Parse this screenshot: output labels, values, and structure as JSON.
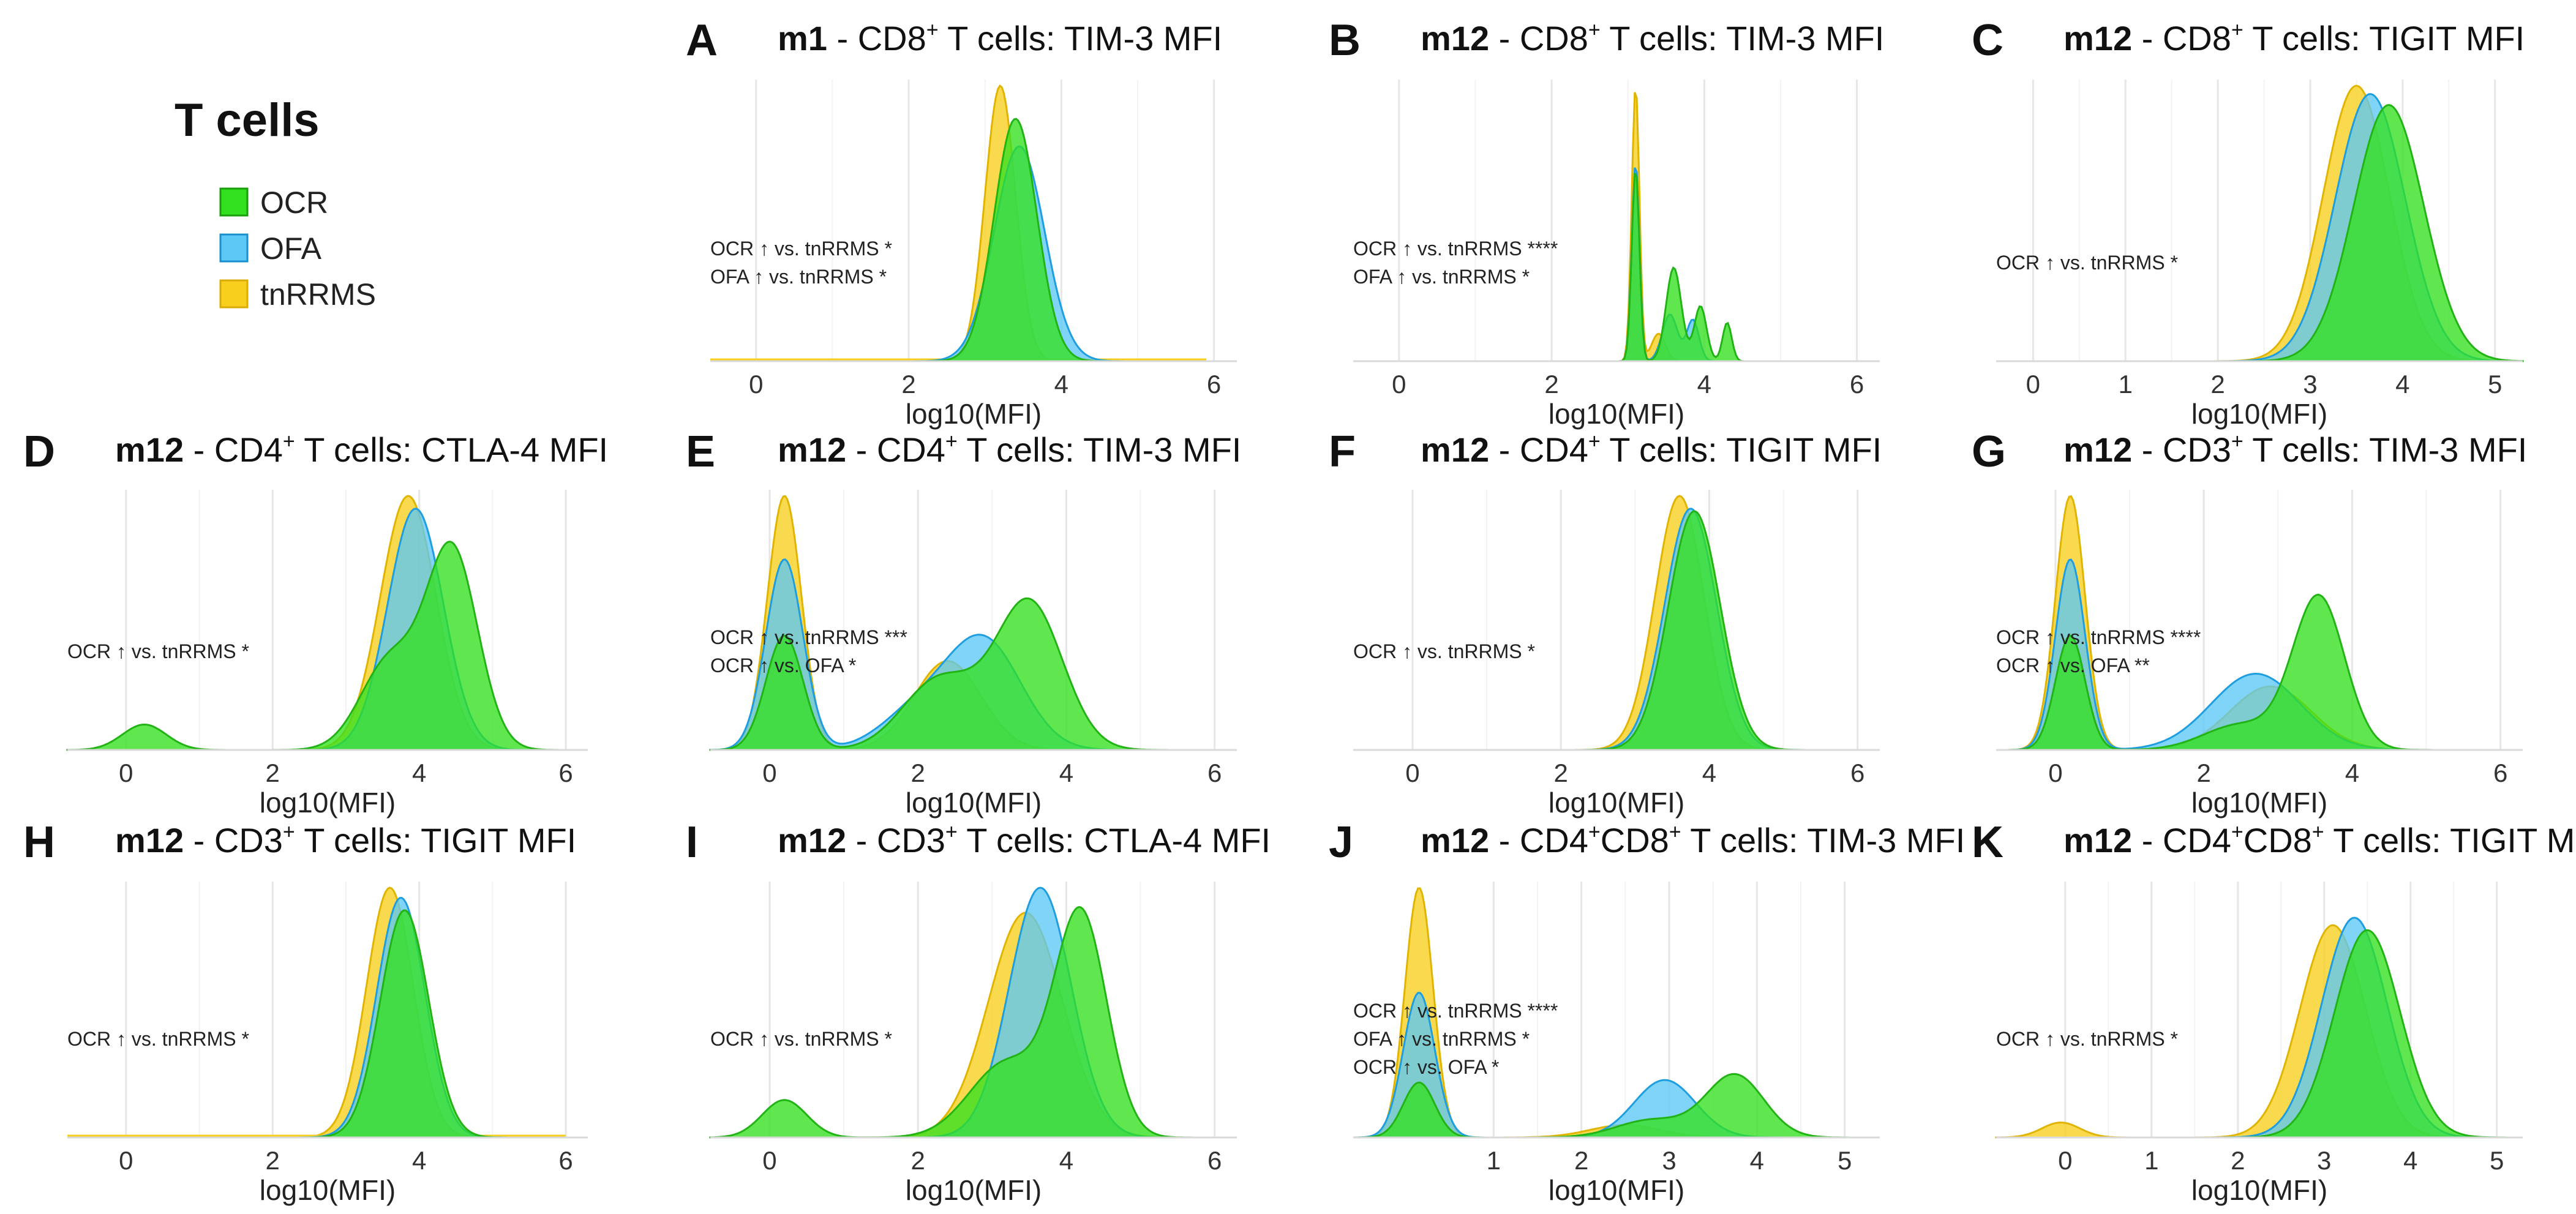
{
  "legend": {
    "title": "T cells",
    "items": [
      {
        "label": "OCR",
        "color": "#33e01f"
      },
      {
        "label": "OFA",
        "color": "#5cc8f5"
      },
      {
        "label": "tnRRMS",
        "color": "#f7cf1c"
      }
    ]
  },
  "chart_data": [
    {
      "id": "A",
      "type": "area",
      "title_prefix": "m1",
      "title_mid": " - CD8",
      "sup": "+",
      "title_end": " T cells: TIM-3 MFI",
      "xlabel": "log10(MFI)",
      "xlim": [
        -0.6,
        6.3
      ],
      "ticks": [
        0,
        2,
        4,
        6
      ],
      "annotations": [
        "OCR ↑ vs. tnRRMS *",
        "OFA ↑ vs. tnRRMS *"
      ],
      "series": [
        {
          "name": "OCR",
          "components": [
            [
              3.4,
              0.28,
              0.88
            ]
          ]
        },
        {
          "name": "OFA",
          "components": [
            [
              3.45,
              0.33,
              0.78
            ]
          ]
        },
        {
          "name": "tnRRMS",
          "components": [
            [
              3.2,
              0.2,
              1.0
            ]
          ],
          "baseline": [
            -0.6,
            5.9
          ]
        }
      ]
    },
    {
      "id": "B",
      "type": "area",
      "title_prefix": "m12",
      "title_mid": " - CD8",
      "sup": "+",
      "title_end": " T cells: TIM-3 MFI",
      "xlabel": "log10(MFI)",
      "xlim": [
        -0.6,
        6.3
      ],
      "ticks": [
        0,
        2,
        4,
        6
      ],
      "annotations": [
        "OCR ↑ vs. tnRRMS ****",
        "OFA ↑ vs. tnRRMS *"
      ],
      "series": [
        {
          "name": "OCR",
          "components": [
            [
              3.1,
              0.05,
              0.7
            ],
            [
              3.6,
              0.1,
              0.34
            ],
            [
              3.95,
              0.08,
              0.2
            ],
            [
              4.3,
              0.06,
              0.14
            ]
          ]
        },
        {
          "name": "OFA",
          "components": [
            [
              3.1,
              0.05,
              0.72
            ],
            [
              3.55,
              0.1,
              0.17
            ],
            [
              3.85,
              0.08,
              0.15
            ]
          ]
        },
        {
          "name": "tnRRMS",
          "components": [
            [
              3.1,
              0.05,
              1.0
            ],
            [
              3.4,
              0.09,
              0.1
            ]
          ]
        }
      ]
    },
    {
      "id": "C",
      "type": "area",
      "title_prefix": "m12",
      "title_mid": " - CD8",
      "sup": "+",
      "title_end": " T cells: TIGIT MFI",
      "xlabel": "log10(MFI)",
      "xlim": [
        -0.4,
        5.3
      ],
      "ticks": [
        0,
        1,
        2,
        3,
        4,
        5
      ],
      "annotations": [
        "OCR ↑ vs. tnRRMS *"
      ],
      "series": [
        {
          "name": "OCR",
          "components": [
            [
              3.85,
              0.38,
              0.93
            ]
          ]
        },
        {
          "name": "OFA",
          "components": [
            [
              3.65,
              0.38,
              0.97
            ]
          ]
        },
        {
          "name": "tnRRMS",
          "components": [
            [
              3.5,
              0.36,
              1.0
            ]
          ]
        }
      ]
    },
    {
      "id": "D",
      "type": "area",
      "title_prefix": "m12",
      "title_mid": " - CD4",
      "sup": "+",
      "title_end": " T cells: CTLA-4 MFI",
      "xlabel": "log10(MFI)",
      "xlim": [
        -0.8,
        6.3
      ],
      "ticks": [
        0,
        2,
        4,
        6
      ],
      "annotations": [
        "OCR ↑ vs. tnRRMS *"
      ],
      "series": [
        {
          "name": "OCR",
          "components": [
            [
              4.45,
              0.35,
              0.78
            ],
            [
              3.6,
              0.4,
              0.35
            ],
            [
              0.25,
              0.3,
              0.1
            ]
          ]
        },
        {
          "name": "OFA",
          "components": [
            [
              3.95,
              0.38,
              0.95
            ]
          ]
        },
        {
          "name": "tnRRMS",
          "components": [
            [
              3.85,
              0.38,
              1.0
            ]
          ]
        }
      ]
    },
    {
      "id": "E",
      "type": "area",
      "title_prefix": "m12",
      "title_mid": " - CD4",
      "sup": "+",
      "title_end": " T cells: TIM-3 MFI",
      "xlabel": "log10(MFI)",
      "xlim": [
        -0.8,
        6.3
      ],
      "ticks": [
        0,
        2,
        4,
        6
      ],
      "annotations": [
        "OCR ↑ vs. tnRRMS ***",
        "OCR ↑ vs. OFA *"
      ],
      "series": [
        {
          "name": "OCR",
          "components": [
            [
              3.5,
              0.45,
              0.58
            ],
            [
              2.3,
              0.5,
              0.28
            ],
            [
              0.2,
              0.25,
              0.45
            ]
          ]
        },
        {
          "name": "OFA",
          "components": [
            [
              2.9,
              0.5,
              0.42
            ],
            [
              2.0,
              0.5,
              0.15
            ],
            [
              0.2,
              0.25,
              0.75
            ]
          ]
        },
        {
          "name": "tnRRMS",
          "components": [
            [
              2.4,
              0.45,
              0.35
            ],
            [
              0.2,
              0.23,
              1.0
            ]
          ]
        }
      ]
    },
    {
      "id": "F",
      "type": "area",
      "title_prefix": "m12",
      "title_mid": " - CD4",
      "sup": "+",
      "title_end": " T cells: TIGIT MFI",
      "xlabel": "log10(MFI)",
      "xlim": [
        -0.8,
        6.3
      ],
      "ticks": [
        0,
        2,
        4,
        6
      ],
      "annotations": [
        "OCR ↑ vs. tnRRMS *"
      ],
      "series": [
        {
          "name": "OCR",
          "components": [
            [
              3.8,
              0.35,
              0.94
            ]
          ]
        },
        {
          "name": "OFA",
          "components": [
            [
              3.75,
              0.35,
              0.95
            ]
          ]
        },
        {
          "name": "tnRRMS",
          "components": [
            [
              3.6,
              0.33,
              1.0
            ]
          ]
        }
      ]
    },
    {
      "id": "G",
      "type": "area",
      "title_prefix": "m12",
      "title_mid": " - CD3",
      "sup": "+",
      "title_end": " T cells: TIM-3 MFI",
      "xlabel": "log10(MFI)",
      "xlim": [
        -0.8,
        6.3
      ],
      "ticks": [
        0,
        2,
        4,
        6
      ],
      "annotations": [
        "OCR ↑ vs. tnRRMS ****",
        "OCR ↑ vs. OFA **"
      ],
      "series": [
        {
          "name": "OCR",
          "components": [
            [
              3.55,
              0.35,
              0.6
            ],
            [
              2.5,
              0.5,
              0.1
            ],
            [
              0.2,
              0.2,
              0.45
            ]
          ]
        },
        {
          "name": "OFA",
          "components": [
            [
              2.7,
              0.6,
              0.3
            ],
            [
              0.2,
              0.2,
              0.75
            ]
          ]
        },
        {
          "name": "tnRRMS",
          "components": [
            [
              2.9,
              0.55,
              0.25
            ],
            [
              0.2,
              0.2,
              1.0
            ]
          ]
        }
      ]
    },
    {
      "id": "H",
      "type": "area",
      "title_prefix": "m12",
      "title_mid": " - CD3",
      "sup": "+",
      "title_end": " T cells: TIGIT MFI",
      "xlabel": "log10(MFI)",
      "xlim": [
        -0.8,
        6.3
      ],
      "ticks": [
        0,
        2,
        4,
        6
      ],
      "annotations": [
        "OCR ↑ vs. tnRRMS *"
      ],
      "series": [
        {
          "name": "OCR",
          "components": [
            [
              3.8,
              0.33,
              0.91
            ]
          ]
        },
        {
          "name": "OFA",
          "components": [
            [
              3.75,
              0.33,
              0.96
            ]
          ]
        },
        {
          "name": "tnRRMS",
          "components": [
            [
              3.6,
              0.32,
              1.0
            ]
          ],
          "baseline": [
            -0.8,
            6.0
          ]
        }
      ]
    },
    {
      "id": "I",
      "type": "area",
      "title_prefix": "m12",
      "title_mid": " - CD3",
      "sup": "+",
      "title_end": " T cells: CTLA-4 MFI",
      "xlabel": "log10(MFI)",
      "xlim": [
        -0.8,
        6.3
      ],
      "ticks": [
        0,
        2,
        4,
        6
      ],
      "annotations": [
        "OCR ↑ vs. tnRRMS *"
      ],
      "series": [
        {
          "name": "OCR",
          "components": [
            [
              4.2,
              0.35,
              0.88
            ],
            [
              3.2,
              0.5,
              0.3
            ],
            [
              0.2,
              0.3,
              0.15
            ]
          ]
        },
        {
          "name": "OFA",
          "components": [
            [
              3.65,
              0.42,
              1.0
            ]
          ]
        },
        {
          "name": "tnRRMS",
          "components": [
            [
              3.45,
              0.5,
              0.9
            ]
          ]
        }
      ]
    },
    {
      "id": "J",
      "type": "area",
      "title_prefix": "m12",
      "title_mid": " - CD4",
      "sup": "+",
      "title_mid2": "CD8",
      "sup2": "+",
      "title_end": " T cells: TIM-3 MFI",
      "xlabel": "log10(MFI)",
      "xlim": [
        -0.6,
        5.4
      ],
      "ticks": [
        1,
        2,
        3,
        4,
        5
      ],
      "annotations": [
        "OCR ↑ vs. tnRRMS ****",
        "OFA ↑ vs. tnRRMS *",
        "OCR ↑ vs. OFA *"
      ],
      "series": [
        {
          "name": "OCR",
          "components": [
            [
              3.75,
              0.33,
              0.25
            ],
            [
              2.8,
              0.4,
              0.07
            ],
            [
              0.15,
              0.18,
              0.22
            ]
          ]
        },
        {
          "name": "OFA",
          "components": [
            [
              2.95,
              0.35,
              0.23
            ],
            [
              0.15,
              0.18,
              0.58
            ]
          ]
        },
        {
          "name": "tnRRMS",
          "components": [
            [
              2.5,
              0.4,
              0.05
            ],
            [
              0.15,
              0.16,
              1.0
            ]
          ]
        }
      ]
    },
    {
      "id": "K",
      "type": "area",
      "title_prefix": "m12",
      "title_mid": " - CD4",
      "sup": "+",
      "title_mid2": "CD8",
      "sup2": "+",
      "title_end": " T cells: TIGIT MFI",
      "xlabel": "log10(MFI)",
      "xlim": [
        -0.8,
        5.3
      ],
      "ticks": [
        0,
        1,
        2,
        3,
        4,
        5
      ],
      "annotations": [
        "OCR ↑ vs. tnRRMS *"
      ],
      "series": [
        {
          "name": "OCR",
          "components": [
            [
              3.5,
              0.38,
              0.83
            ]
          ]
        },
        {
          "name": "OFA",
          "components": [
            [
              3.35,
              0.38,
              0.88
            ]
          ]
        },
        {
          "name": "tnRRMS",
          "components": [
            [
              3.1,
              0.38,
              0.85
            ],
            [
              -0.05,
              0.22,
              0.06
            ]
          ]
        }
      ]
    }
  ]
}
